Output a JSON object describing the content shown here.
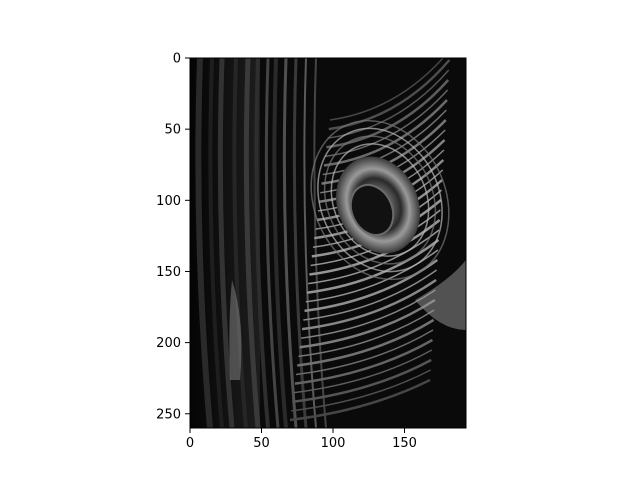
{
  "chart_data": {
    "type": "image",
    "colormap": "gray",
    "image_subject": "peacock-feather",
    "x": {
      "range": [
        0,
        193
      ],
      "ticks": [
        0,
        50,
        100,
        150
      ],
      "tick_labels": [
        "0",
        "50",
        "100",
        "150"
      ]
    },
    "y": {
      "range": [
        0,
        260
      ],
      "inverted": true,
      "ticks": [
        0,
        50,
        100,
        150,
        200,
        250
      ],
      "tick_labels": [
        "0",
        "50",
        "100",
        "150",
        "200",
        "250"
      ]
    },
    "title": "",
    "xlabel": "",
    "ylabel": "",
    "grid": false
  },
  "colors": {
    "axes_frame": "#000000",
    "background": "#ffffff"
  }
}
